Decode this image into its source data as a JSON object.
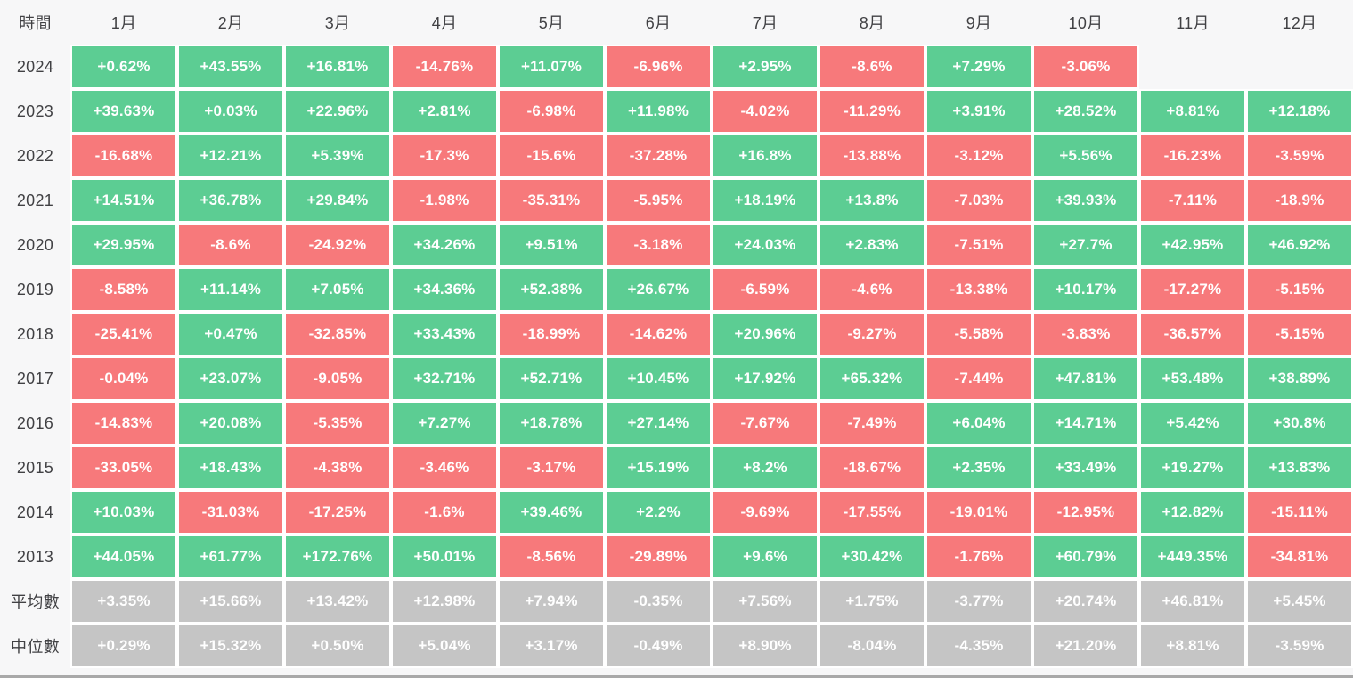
{
  "colors": {
    "positive": "#5ccd93",
    "negative": "#f7797b",
    "stat_row": "#c5c5c5",
    "page_background": "#f7f7f8",
    "cell_gap": "#ffffff",
    "label_text": "#414144",
    "cell_text": "#ffffff",
    "bottom_divider": "#a9a9a9"
  },
  "chart_data": {
    "type": "heatmap",
    "corner_label": "時間",
    "x_labels": [
      "1月",
      "2月",
      "3月",
      "4月",
      "5月",
      "6月",
      "7月",
      "8月",
      "9月",
      "10月",
      "11月",
      "12月"
    ],
    "value_unit": "%",
    "color_rule": "green = positive monthly return, red = negative monthly return, gray = summary statistic rows",
    "rows": [
      {
        "label": "2024",
        "kind": "year",
        "values": [
          "+0.62%",
          "+43.55%",
          "+16.81%",
          "-14.76%",
          "+11.07%",
          "-6.96%",
          "+2.95%",
          "-8.6%",
          "+7.29%",
          "-3.06%",
          "",
          ""
        ]
      },
      {
        "label": "2023",
        "kind": "year",
        "values": [
          "+39.63%",
          "+0.03%",
          "+22.96%",
          "+2.81%",
          "-6.98%",
          "+11.98%",
          "-4.02%",
          "-11.29%",
          "+3.91%",
          "+28.52%",
          "+8.81%",
          "+12.18%"
        ]
      },
      {
        "label": "2022",
        "kind": "year",
        "values": [
          "-16.68%",
          "+12.21%",
          "+5.39%",
          "-17.3%",
          "-15.6%",
          "-37.28%",
          "+16.8%",
          "-13.88%",
          "-3.12%",
          "+5.56%",
          "-16.23%",
          "-3.59%"
        ]
      },
      {
        "label": "2021",
        "kind": "year",
        "values": [
          "+14.51%",
          "+36.78%",
          "+29.84%",
          "-1.98%",
          "-35.31%",
          "-5.95%",
          "+18.19%",
          "+13.8%",
          "-7.03%",
          "+39.93%",
          "-7.11%",
          "-18.9%"
        ]
      },
      {
        "label": "2020",
        "kind": "year",
        "values": [
          "+29.95%",
          "-8.6%",
          "-24.92%",
          "+34.26%",
          "+9.51%",
          "-3.18%",
          "+24.03%",
          "+2.83%",
          "-7.51%",
          "+27.7%",
          "+42.95%",
          "+46.92%"
        ]
      },
      {
        "label": "2019",
        "kind": "year",
        "values": [
          "-8.58%",
          "+11.14%",
          "+7.05%",
          "+34.36%",
          "+52.38%",
          "+26.67%",
          "-6.59%",
          "-4.6%",
          "-13.38%",
          "+10.17%",
          "-17.27%",
          "-5.15%"
        ]
      },
      {
        "label": "2018",
        "kind": "year",
        "values": [
          "-25.41%",
          "+0.47%",
          "-32.85%",
          "+33.43%",
          "-18.99%",
          "-14.62%",
          "+20.96%",
          "-9.27%",
          "-5.58%",
          "-3.83%",
          "-36.57%",
          "-5.15%"
        ]
      },
      {
        "label": "2017",
        "kind": "year",
        "values": [
          "-0.04%",
          "+23.07%",
          "-9.05%",
          "+32.71%",
          "+52.71%",
          "+10.45%",
          "+17.92%",
          "+65.32%",
          "-7.44%",
          "+47.81%",
          "+53.48%",
          "+38.89%"
        ]
      },
      {
        "label": "2016",
        "kind": "year",
        "values": [
          "-14.83%",
          "+20.08%",
          "-5.35%",
          "+7.27%",
          "+18.78%",
          "+27.14%",
          "-7.67%",
          "-7.49%",
          "+6.04%",
          "+14.71%",
          "+5.42%",
          "+30.8%"
        ]
      },
      {
        "label": "2015",
        "kind": "year",
        "values": [
          "-33.05%",
          "+18.43%",
          "-4.38%",
          "-3.46%",
          "-3.17%",
          "+15.19%",
          "+8.2%",
          "-18.67%",
          "+2.35%",
          "+33.49%",
          "+19.27%",
          "+13.83%"
        ]
      },
      {
        "label": "2014",
        "kind": "year",
        "values": [
          "+10.03%",
          "-31.03%",
          "-17.25%",
          "-1.6%",
          "+39.46%",
          "+2.2%",
          "-9.69%",
          "-17.55%",
          "-19.01%",
          "-12.95%",
          "+12.82%",
          "-15.11%"
        ]
      },
      {
        "label": "2013",
        "kind": "year",
        "values": [
          "+44.05%",
          "+61.77%",
          "+172.76%",
          "+50.01%",
          "-8.56%",
          "-29.89%",
          "+9.6%",
          "+30.42%",
          "-1.76%",
          "+60.79%",
          "+449.35%",
          "-34.81%"
        ]
      },
      {
        "label": "平均數",
        "kind": "stat",
        "values": [
          "+3.35%",
          "+15.66%",
          "+13.42%",
          "+12.98%",
          "+7.94%",
          "-0.35%",
          "+7.56%",
          "+1.75%",
          "-3.77%",
          "+20.74%",
          "+46.81%",
          "+5.45%"
        ]
      },
      {
        "label": "中位數",
        "kind": "stat",
        "values": [
          "+0.29%",
          "+15.32%",
          "+0.50%",
          "+5.04%",
          "+3.17%",
          "-0.49%",
          "+8.90%",
          "-8.04%",
          "-4.35%",
          "+21.20%",
          "+8.81%",
          "-3.59%"
        ]
      }
    ]
  }
}
